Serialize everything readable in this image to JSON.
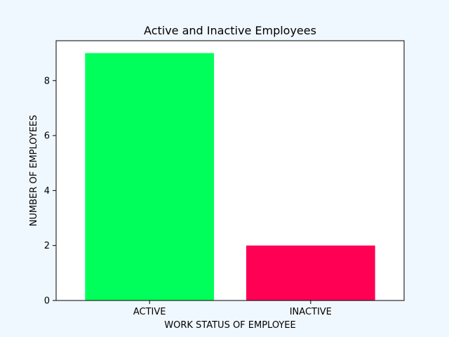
{
  "chart_data": {
    "type": "bar",
    "title": "Active and Inactive Employees",
    "xlabel": "WORK STATUS OF EMPLOYEE",
    "ylabel": "NUMBER OF EMPLOYEES",
    "categories": [
      "ACTIVE",
      "INACTIVE"
    ],
    "values": [
      9,
      2
    ],
    "colors": [
      "#00ff5a",
      "#ff0055"
    ],
    "ylim": [
      0,
      9.45
    ],
    "yticks": [
      0,
      2,
      4,
      6,
      8
    ],
    "grid": false,
    "background": "#f0f8ff",
    "plot_background": "#ffffff"
  }
}
